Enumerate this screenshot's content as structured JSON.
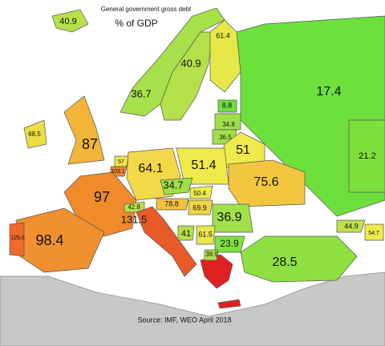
{
  "title": "General government gross debt",
  "subtitle": "% of GDP",
  "source": "Source: IMF, WEO April 2018",
  "regions": [
    {
      "value": 40.9,
      "color": "#b4e04a"
    },
    {
      "value": 36.7,
      "color": "#a6e04a"
    },
    {
      "value": 40.9,
      "color": "#b4e04a"
    },
    {
      "value": 61.4,
      "color": "#e6e84a"
    },
    {
      "value": 17.4,
      "color": "#6ee03c"
    },
    {
      "value": 8.8,
      "color": "#6ee03c"
    },
    {
      "value": 34.8,
      "color": "#9ee04a"
    },
    {
      "value": 36.5,
      "color": "#a2e04a"
    },
    {
      "value": 51,
      "color": "#eeea4a"
    },
    {
      "value": 68.5,
      "color": "#eedc46"
    },
    {
      "value": 87,
      "color": "#f3b43a"
    },
    {
      "value": 21.2,
      "color": "#7ee03c"
    },
    {
      "value": 57,
      "color": "#eee44a"
    },
    {
      "value": 103.1,
      "color": "#f0862c"
    },
    {
      "value": 64.1,
      "color": "#f5d84a"
    },
    {
      "value": 51.4,
      "color": "#eeea4a"
    },
    {
      "value": 75.6,
      "color": "#f3c63f"
    },
    {
      "value": 34.7,
      "color": "#9ee04a"
    },
    {
      "value": 97,
      "color": "#f08a2a"
    },
    {
      "value": 50.4,
      "color": "#eeea4a"
    },
    {
      "value": 78.8,
      "color": "#f3c040"
    },
    {
      "value": 42.8,
      "color": "#bae04a"
    },
    {
      "value": 69.9,
      "color": "#f0d444"
    },
    {
      "value": 36.9,
      "color": "#a0e04a"
    },
    {
      "value": 131.5,
      "color": "#e85a28"
    },
    {
      "value": 41,
      "color": "#b4e04a"
    },
    {
      "value": 61.5,
      "color": "#e6e84a"
    },
    {
      "value": 23.9,
      "color": "#80e040"
    },
    {
      "value": 39.9,
      "color": "#b0e04a"
    },
    {
      "value": 98.4,
      "color": "#f09030"
    },
    {
      "value": 125.6,
      "color": "#ee6a2a"
    },
    {
      "value": 28.5,
      "color": "#8ee040"
    },
    {
      "value": 44.9,
      "color": "#c0e04a"
    },
    {
      "value": 54.7,
      "color": "#eeea4a"
    }
  ]
}
